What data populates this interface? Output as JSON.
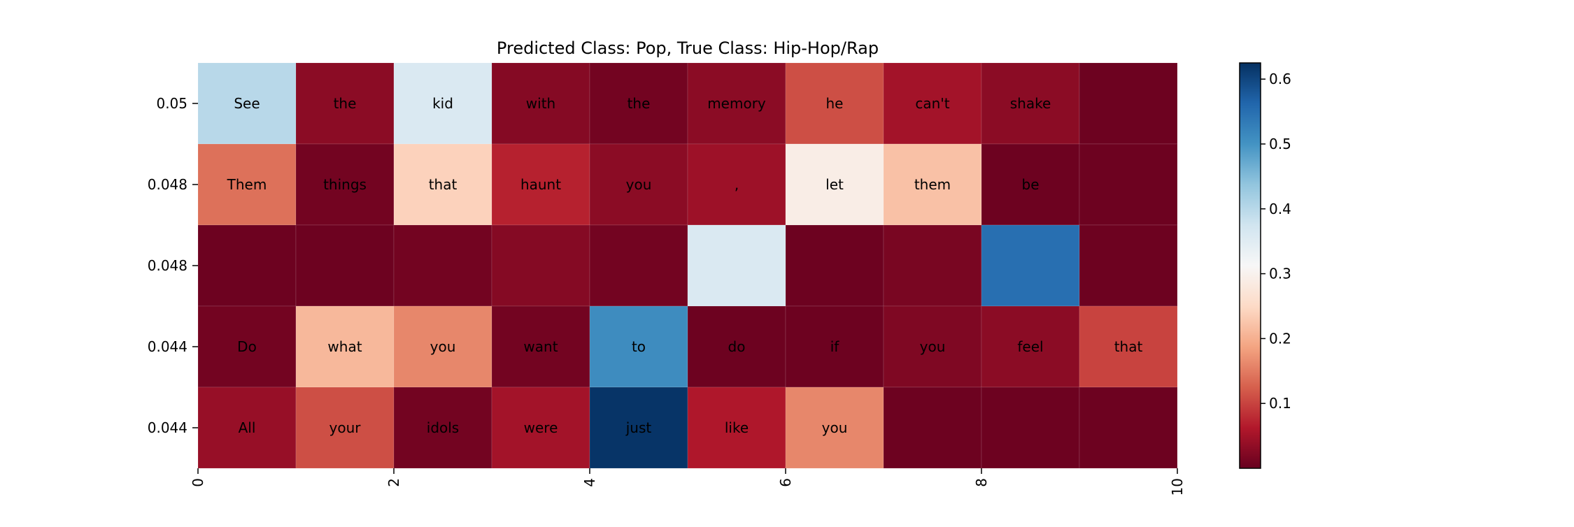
{
  "chart_data": {
    "type": "heatmap",
    "title": "Predicted Class: Pop, True Class: Hip-Hop/Rap",
    "xlabel": "",
    "ylabel": "",
    "x_ticks": [
      "0",
      "2",
      "4",
      "6",
      "8",
      "10"
    ],
    "xlim": [
      0,
      10
    ],
    "y_ticks": [
      "0.05",
      "0.048",
      "0.048",
      "0.044",
      "0.044"
    ],
    "colormap": "RdBu",
    "color_range": [
      0.0,
      0.625
    ],
    "colorbar_ticks": [
      "0.1",
      "0.2",
      "0.3",
      "0.4",
      "0.5",
      "0.6"
    ],
    "rows": [
      {
        "words": [
          "See",
          "the",
          "kid",
          "with",
          "the",
          "memory",
          "he",
          "can't",
          "shake",
          ""
        ],
        "values": [
          0.4,
          0.03,
          0.36,
          0.025,
          0.01,
          0.03,
          0.11,
          0.05,
          0.03,
          0.005
        ]
      },
      {
        "words": [
          "Them",
          "things",
          "that",
          "haunt",
          "you",
          ",",
          "let",
          "them",
          "be",
          ""
        ],
        "values": [
          0.14,
          0.01,
          0.24,
          0.07,
          0.03,
          0.045,
          0.29,
          0.22,
          0.005,
          0.005
        ]
      },
      {
        "words": [
          "",
          "",
          "",
          "",
          "",
          "",
          "",
          "",
          "",
          ""
        ],
        "values": [
          0.005,
          0.005,
          0.01,
          0.025,
          0.01,
          0.36,
          0.005,
          0.015,
          0.55,
          0.005
        ]
      },
      {
        "words": [
          "Do",
          "what",
          "you",
          "want",
          "to",
          "do",
          "if",
          "you",
          "feel",
          "that"
        ],
        "values": [
          0.01,
          0.21,
          0.16,
          0.01,
          0.51,
          0.005,
          0.005,
          0.02,
          0.03,
          0.1
        ]
      },
      {
        "words": [
          "All",
          "your",
          "idols",
          "were",
          "just",
          "like",
          "you",
          "",
          "",
          ""
        ],
        "values": [
          0.04,
          0.11,
          0.01,
          0.05,
          0.62,
          0.06,
          0.16,
          0.005,
          0.005,
          0.005
        ]
      }
    ]
  }
}
